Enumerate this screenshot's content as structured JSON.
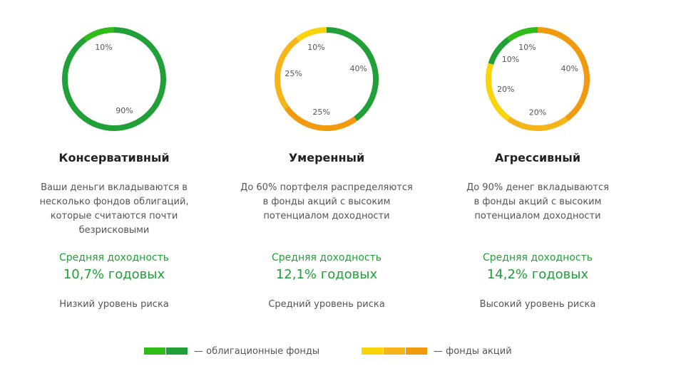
{
  "portfolios": [
    {
      "title": "Консервативный",
      "description_lines": [
        "Ваши деньги вкладываются в",
        "несколько фондов облигаций,",
        "которые считаются почти",
        "безрисковыми"
      ],
      "return_label": "Средняя доходность",
      "return_value": "10,7% годовых",
      "risk": "Низкий уровень риска",
      "segments": [
        {
          "label": "90%",
          "value": 90,
          "color": "#21a038"
        },
        {
          "label": "10%",
          "value": 10,
          "color": "#2fbb18"
        }
      ]
    },
    {
      "title": "Умеренный",
      "description_lines": [
        "До 60% портфеля распределяются",
        "в фонды акций с высоким",
        "потенциалом доходности"
      ],
      "return_label": "Средняя доходность",
      "return_value": "12,1% годовых",
      "risk": "Средний уровень риска",
      "segments": [
        {
          "label": "40%",
          "value": 40,
          "color": "#21a038"
        },
        {
          "label": "25%",
          "value": 25,
          "color": "#f29a0e"
        },
        {
          "label": "25%",
          "value": 25,
          "color": "#f5b41a"
        },
        {
          "label": "10%",
          "value": 10,
          "color": "#fad40b"
        }
      ]
    },
    {
      "title": "Агрессивный",
      "description_lines": [
        "До 90% денег вкладываются",
        "в фонды акций с высоким",
        "потенциалом доходности"
      ],
      "return_label": "Средняя доходность",
      "return_value": "14,2% годовых",
      "risk": "Высокий уровень риска",
      "segments": [
        {
          "label": "40%",
          "value": 40,
          "color": "#f29a0e"
        },
        {
          "label": "20%",
          "value": 20,
          "color": "#f5b41a"
        },
        {
          "label": "20%",
          "value": 20,
          "color": "#fad40b"
        },
        {
          "label": "10%",
          "value": 10,
          "color": "#21a038"
        },
        {
          "label": "10%",
          "value": 10,
          "color": "#2fbb18"
        }
      ]
    }
  ],
  "legend": {
    "bonds": {
      "label": "— облигационные фонды",
      "colors": [
        "#2fbb18",
        "#21a038"
      ]
    },
    "stocks": {
      "label": "— фонды акций",
      "colors": [
        "#fad40b",
        "#f5b41a",
        "#f29a0e"
      ]
    }
  }
}
